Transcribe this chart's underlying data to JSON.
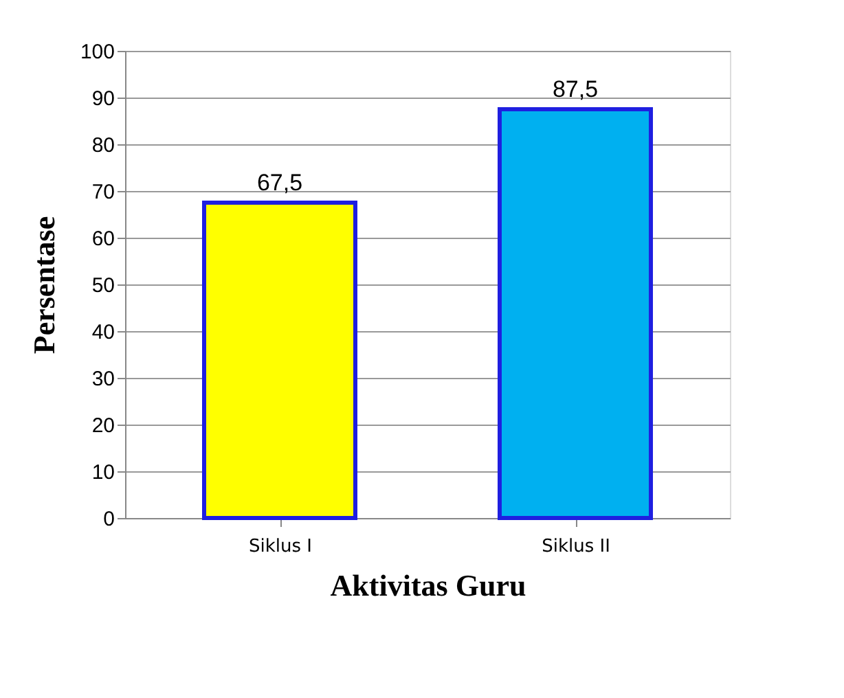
{
  "chart_data": {
    "type": "bar",
    "xlabel": "Aktivitas Guru",
    "ylabel": "Persentase",
    "categories": [
      "Siklus I",
      "Siklus II"
    ],
    "values": [
      67.5,
      87.5
    ],
    "colors": [
      "#ffff00",
      "#00b0f0"
    ],
    "value_labels": [
      "67,5",
      "87,5"
    ],
    "ylim": [
      0,
      100
    ],
    "yticks": [
      0,
      10,
      20,
      30,
      40,
      50,
      60,
      70,
      80,
      90,
      100
    ],
    "grid": "y"
  }
}
